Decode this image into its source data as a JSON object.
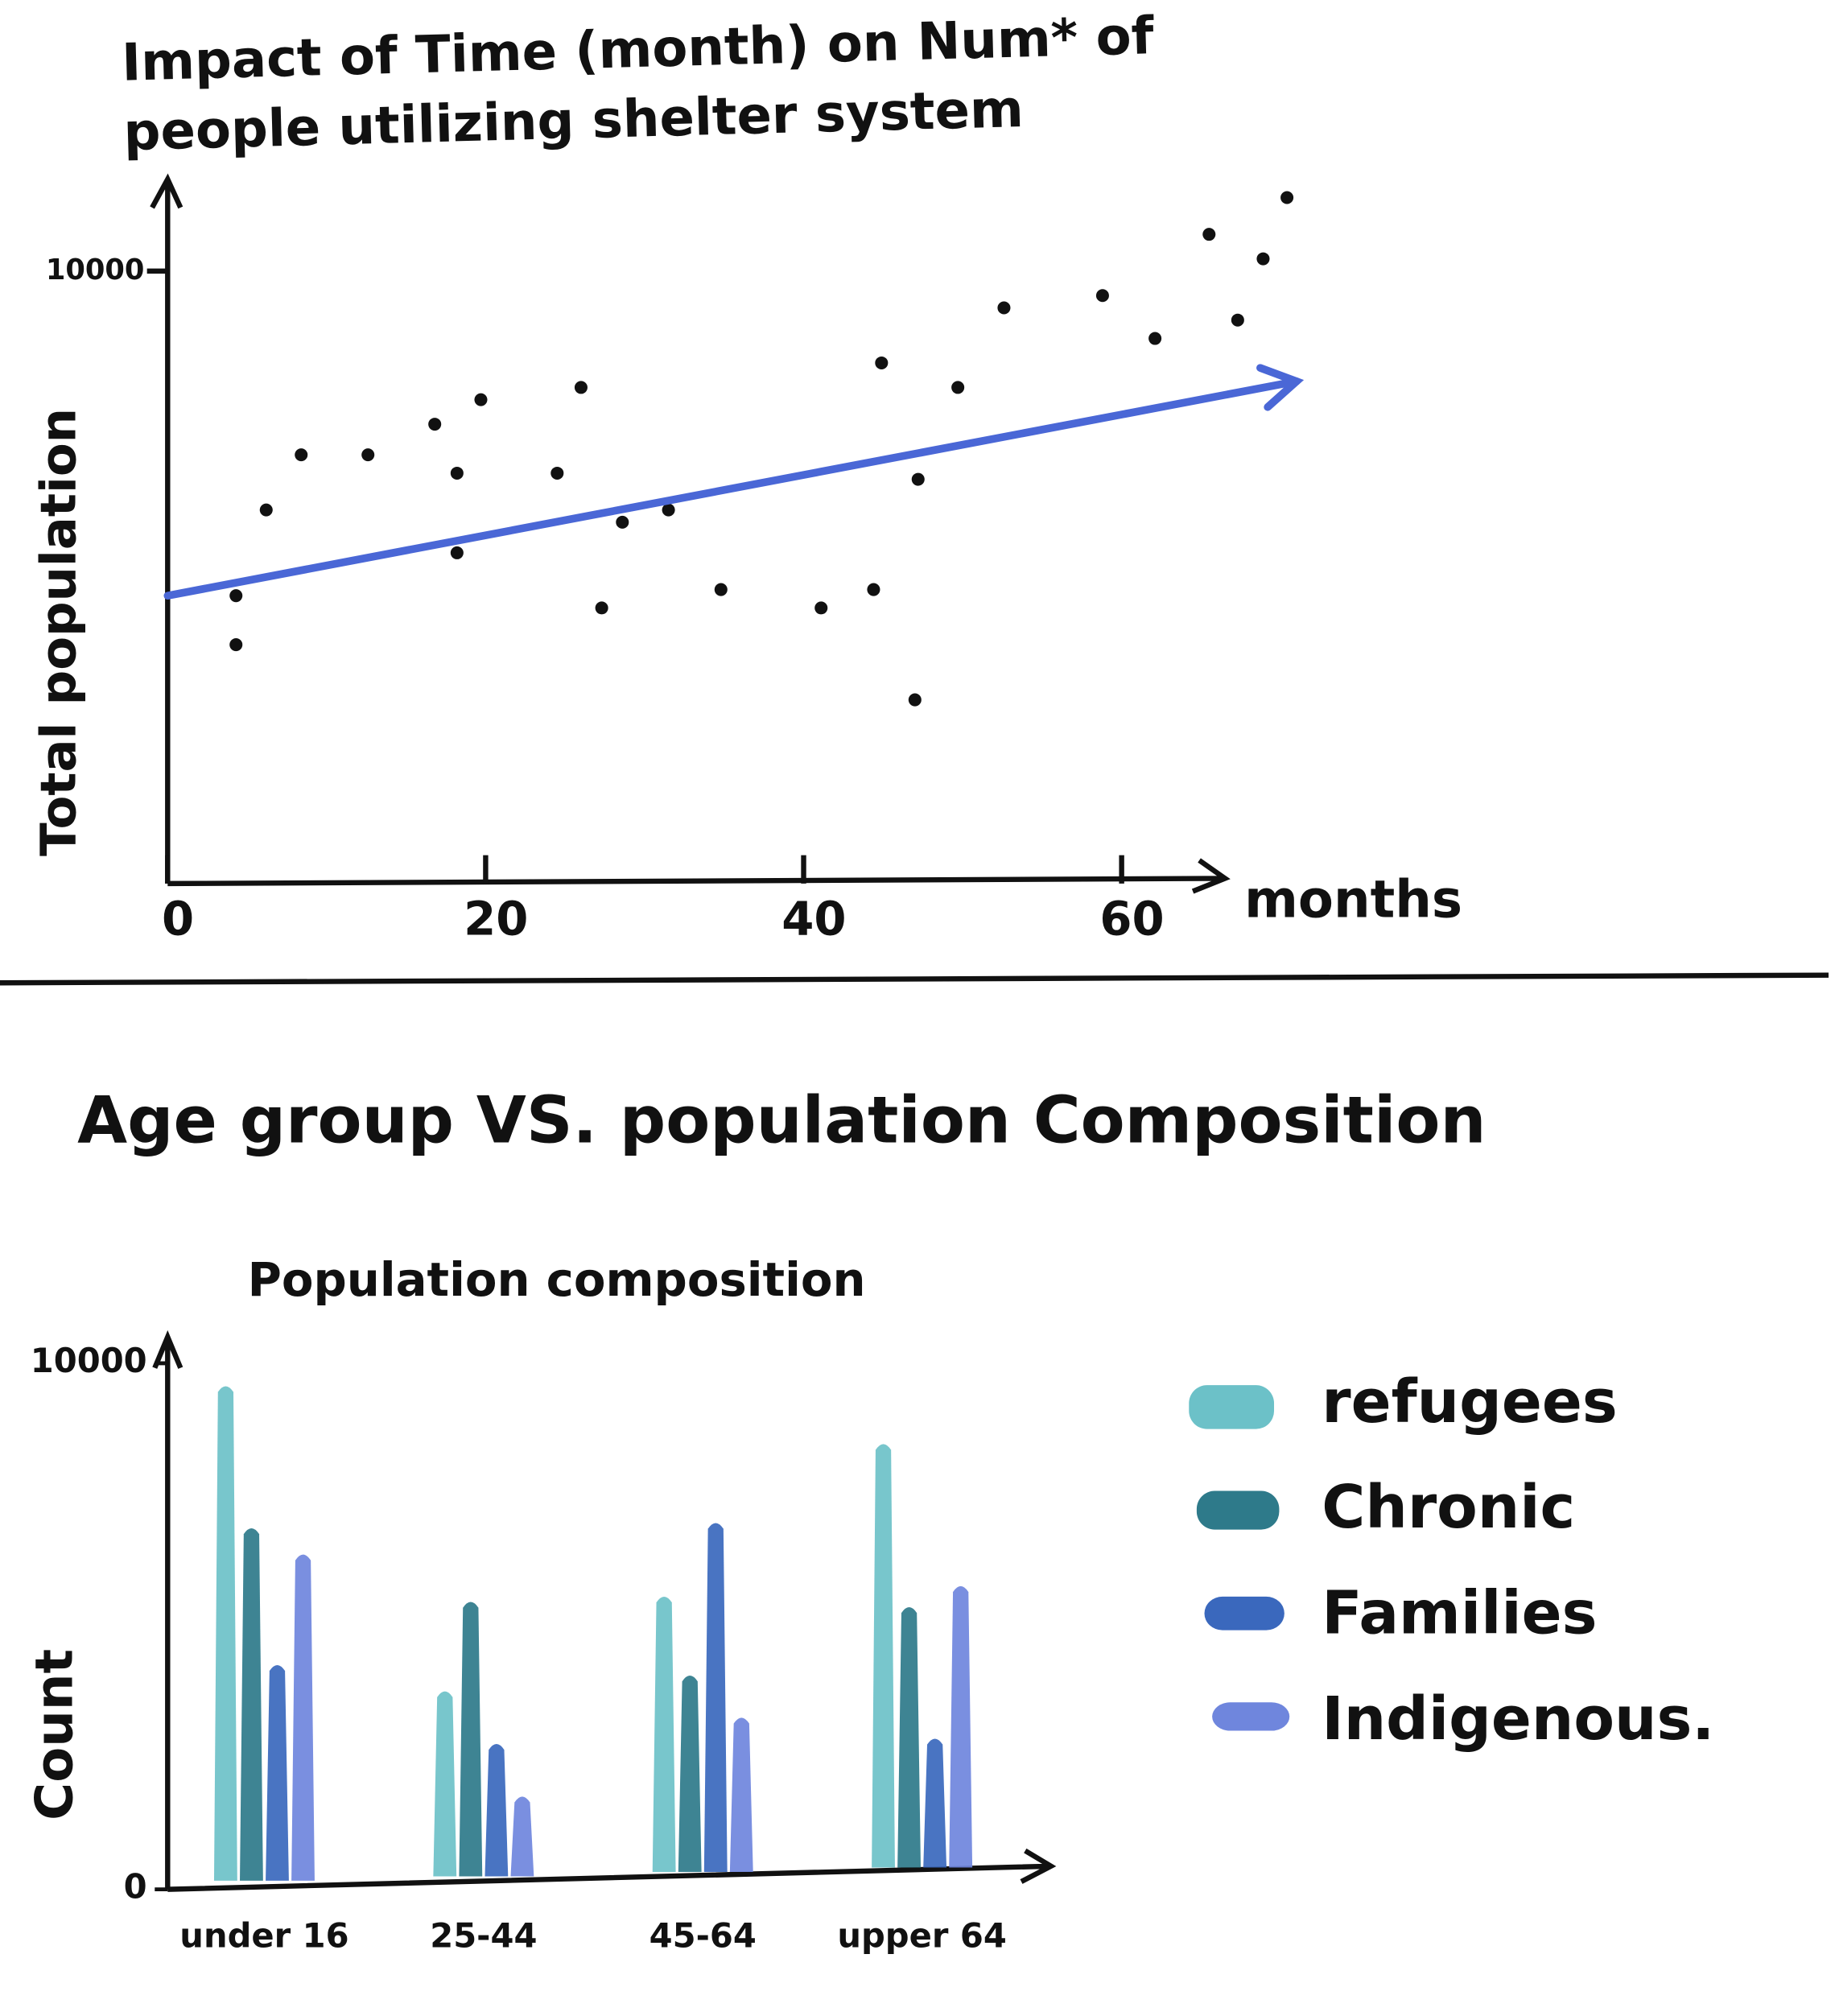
{
  "chart_data": [
    {
      "type": "scatter",
      "title": "Impact of Time (month) on Num* of people utilizing shelter system",
      "x_label": "months",
      "y_label": "Total population",
      "x": [
        4.3,
        4.3,
        6.2,
        8.4,
        12.6,
        16.8,
        19.7,
        18.2,
        18.2,
        24.5,
        26.0,
        27.3,
        28.6,
        31.5,
        34.8,
        41.1,
        44.4,
        44.9,
        47.2,
        47.0,
        49.7,
        52.6,
        58.8,
        62.1,
        65.5,
        67.3,
        68.9,
        70.4
      ],
      "values": [
        4700,
        3900,
        6100,
        7000,
        7000,
        7500,
        7900,
        6700,
        5400,
        6700,
        8100,
        4500,
        5900,
        6100,
        4800,
        4500,
        4800,
        8500,
        6600,
        3000,
        8100,
        9400,
        9600,
        8900,
        10600,
        9200,
        10200,
        11200
      ],
      "color": "#111111",
      "trend": {
        "x": [
          0,
          71
        ],
        "y": [
          4700,
          8200
        ],
        "color": "#4a67d6"
      },
      "xlim": [
        0,
        72
      ],
      "ylim": [
        0,
        11500
      ],
      "xticks": [
        0,
        20,
        40,
        60
      ],
      "yticks": [
        10000
      ],
      "grid": false
    },
    {
      "type": "bar",
      "title": "Age group VS. population Composition",
      "subtitle": "Population composition",
      "y_label": "Count",
      "categories": [
        "under 16",
        "25-44",
        "45-64",
        "upper 64"
      ],
      "series": [
        {
          "name": "refugees",
          "color": "#6cc1c8",
          "values": [
            9600,
            3800,
            5600,
            8500
          ]
        },
        {
          "name": "Chronic",
          "color": "#2e7a8a",
          "values": [
            6900,
            5500,
            4100,
            5400
          ]
        },
        {
          "name": "Families",
          "color": "#3a68bd",
          "values": [
            4300,
            2800,
            7000,
            2900
          ]
        },
        {
          "name": "Indigenous.",
          "color": "#6f86dd",
          "values": [
            6400,
            1800,
            3300,
            5800
          ]
        }
      ],
      "ylim": [
        0,
        10500
      ],
      "yticks": [
        0,
        10000
      ],
      "legend": "right",
      "grid": false
    }
  ]
}
